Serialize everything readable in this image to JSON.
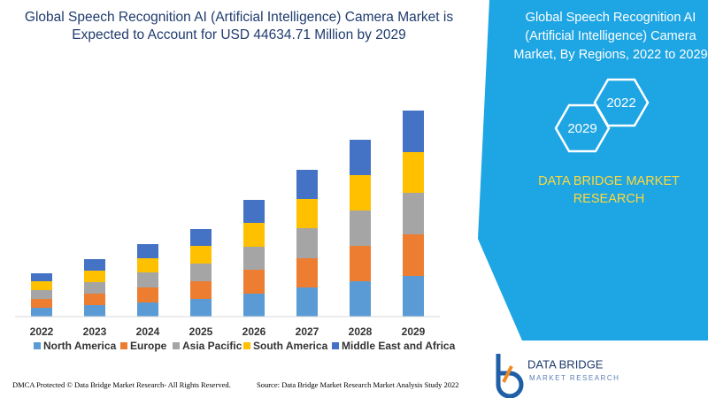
{
  "chart_data": {
    "type": "stacked_bar",
    "title": [
      "Global Speech Recognition AI (Artificial Intelligence) Camera Market is",
      "Expected to Account for USD 44634.71 Million by 2029"
    ],
    "categories": [
      "2022",
      "2023",
      "2024",
      "2025",
      "2026",
      "2027",
      "2028",
      "2029"
    ],
    "series": [
      {
        "name": "North America",
        "color": "#5b9bd5",
        "values": [
          10,
          13,
          16,
          20,
          26,
          33,
          40,
          46
        ]
      },
      {
        "name": "Europe",
        "color": "#ed7d31",
        "values": [
          10,
          13,
          17,
          20,
          27,
          33,
          40,
          47
        ]
      },
      {
        "name": "Asia Pacific",
        "color": "#a5a5a5",
        "values": [
          10,
          13,
          17,
          20,
          26,
          34,
          40,
          47
        ]
      },
      {
        "name": "South America",
        "color": "#ffc000",
        "values": [
          10,
          13,
          16,
          20,
          27,
          33,
          40,
          46
        ]
      },
      {
        "name": "Middle East and Africa",
        "color": "#4472c4",
        "values": [
          9,
          13,
          16,
          19,
          26,
          33,
          40,
          47
        ]
      }
    ],
    "ylim": [
      0,
      240
    ]
  },
  "side_panel": {
    "title": [
      "Global Speech Recognition AI",
      "(Artificial Intelligence) Camera",
      "Market, By Regions, 2022 to 2029"
    ],
    "hexagons": [
      "2029",
      "2022"
    ],
    "brand": [
      "DATA BRIDGE MARKET",
      "RESEARCH"
    ]
  },
  "logo": {
    "name": "DATA BRIDGE",
    "tagline": "MARKET RESEARCH"
  },
  "footer": {
    "left": "DMCA Protected © Data Bridge Market Research- All Rights Reserved.",
    "right": "Source: Data Bridge Market Research Market Analysis Study 2022"
  }
}
